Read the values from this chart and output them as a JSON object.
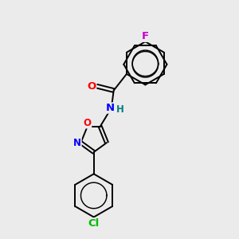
{
  "background_color": "#ebebeb",
  "bond_color": "#000000",
  "atom_colors": {
    "O": "#ff0000",
    "N": "#0000ff",
    "Cl": "#00bb00",
    "F": "#cc00cc",
    "H": "#008080"
  },
  "lw": 1.4,
  "figsize": [
    3.0,
    3.0
  ],
  "dpi": 100,
  "fs": 8.5
}
